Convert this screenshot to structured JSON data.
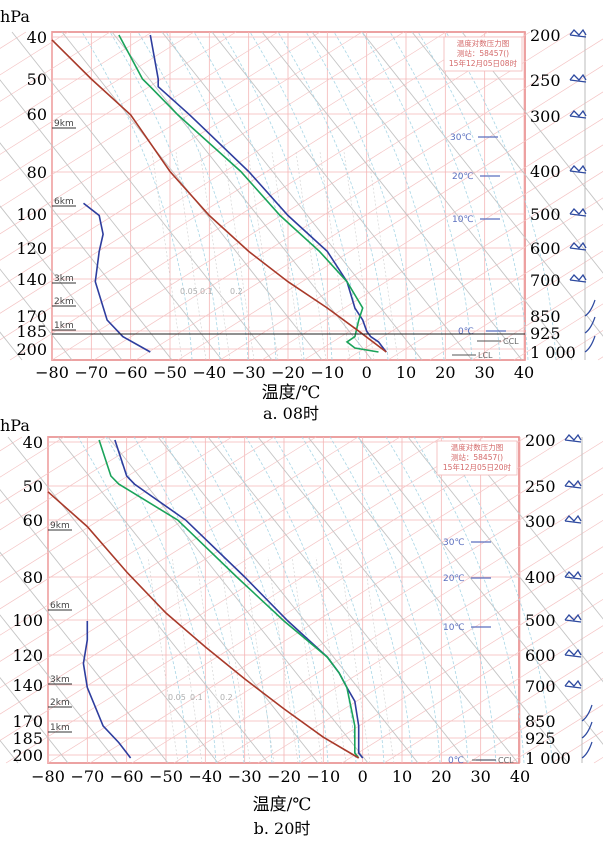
{
  "chart_data": [
    {
      "type": "line",
      "panel_caption": "a. 08时",
      "ylabel_unit": "hPa",
      "xlabel": "温度/℃",
      "x_ticks": [
        -80,
        -70,
        -60,
        -50,
        -40,
        -30,
        -20,
        -10,
        0,
        10,
        20,
        30,
        40
      ],
      "x_tick_labels": [
        "−80",
        "−70",
        "−60",
        "−50",
        "−40",
        "−30",
        "−20",
        "−10",
        "0",
        "10",
        "20",
        "30",
        "40"
      ],
      "xlim": [
        -80,
        40
      ],
      "y_scale": "log-pressure",
      "y_ticks_left": [
        "40",
        "50",
        "60",
        "80",
        "100",
        "120",
        "140",
        "170",
        "185",
        "200"
      ],
      "y_ticks_right": [
        "200",
        "250",
        "300",
        "400",
        "500",
        "600",
        "700",
        "850",
        "925",
        "1 000"
      ],
      "height_marks": [
        "9km",
        "6km",
        "3km",
        "2km",
        "1km"
      ],
      "isotherm_labels": [
        "30℃",
        "20℃",
        "10℃",
        "0℃"
      ],
      "mixing_ratio_labels": [
        "0.05",
        "0.1",
        "0.2"
      ],
      "level_labels": [
        "CCL",
        "LCL"
      ],
      "info_box": [
        "温度对数压力图",
        "测站：58457()",
        "15年12月05日08时"
      ],
      "series": [
        {
          "color": "#2e3d9e",
          "x": [
            5,
            3,
            1,
            0,
            -1,
            -3,
            -5,
            -10,
            -20,
            -30,
            -45,
            -53,
            -53,
            -55
          ],
          "y_hpa": [
            1000,
            950,
            925,
            900,
            850,
            800,
            700,
            600,
            500,
            400,
            300,
            260,
            250,
            200
          ]
        },
        {
          "color": "#1aa35a",
          "x": [
            3,
            -3,
            -5,
            -3,
            -2,
            -1,
            -5,
            -12,
            -22,
            -32,
            -48,
            -55,
            -57,
            -63
          ],
          "y_hpa": [
            1000,
            980,
            950,
            925,
            850,
            800,
            700,
            600,
            500,
            400,
            300,
            260,
            250,
            200
          ]
        },
        {
          "color": "#a83a2a",
          "x": [
            5,
            -2,
            -10,
            -20,
            -30,
            -40,
            -50,
            -60,
            -70,
            -80
          ],
          "y_hpa": [
            1000,
            900,
            800,
            700,
            600,
            500,
            400,
            300,
            250,
            205
          ]
        },
        {
          "color": "#2e3d9e",
          "x": [
            -55,
            -62,
            -66,
            -69,
            -68,
            -67,
            -68,
            -72
          ],
          "y_hpa": [
            1000,
            925,
            850,
            700,
            600,
            550,
            500,
            470
          ]
        }
      ]
    },
    {
      "type": "line",
      "panel_caption": "b. 20时",
      "ylabel_unit": "hPa",
      "xlabel": "温度/℃",
      "x_ticks": [
        -80,
        -70,
        -60,
        -50,
        -40,
        -30,
        -20,
        -10,
        0,
        10,
        20,
        30,
        40
      ],
      "x_tick_labels": [
        "−80",
        "−70",
        "−60",
        "−50",
        "−40",
        "−30",
        "−20",
        "−10",
        "0",
        "10",
        "20",
        "30",
        "40"
      ],
      "xlim": [
        -80,
        40
      ],
      "y_scale": "log-pressure",
      "y_ticks_left": [
        "40",
        "50",
        "60",
        "80",
        "100",
        "120",
        "140",
        "170",
        "185",
        "200"
      ],
      "y_ticks_right": [
        "200",
        "250",
        "300",
        "400",
        "500",
        "600",
        "700",
        "850",
        "925",
        "1 000"
      ],
      "height_marks": [
        "9km",
        "6km",
        "3km",
        "2km",
        "1km"
      ],
      "isotherm_labels": [
        "30℃",
        "20℃",
        "10℃",
        "0℃"
      ],
      "mixing_ratio_labels": [
        "0.05",
        "0.1",
        "0.2"
      ],
      "level_labels": [
        "CCL"
      ],
      "info_box": [
        "温度对数压力图",
        "测站：58457()",
        "15年12月05日20时"
      ],
      "series": [
        {
          "color": "#2e3d9e",
          "x": [
            0,
            -1,
            -1,
            -1,
            -2,
            -4,
            -6,
            -9,
            -19,
            -30,
            -45,
            -58,
            -60,
            -63
          ],
          "y_hpa": [
            1000,
            975,
            925,
            850,
            750,
            700,
            650,
            600,
            500,
            400,
            300,
            250,
            240,
            200
          ]
        },
        {
          "color": "#1aa35a",
          "x": [
            -1,
            -2,
            -2,
            -2,
            -4,
            -6,
            -9,
            -20,
            -32,
            -47,
            -62,
            -64,
            -67
          ],
          "y_hpa": [
            1000,
            975,
            925,
            850,
            700,
            650,
            600,
            500,
            400,
            300,
            250,
            240,
            200
          ]
        },
        {
          "color": "#a83a2a",
          "x": [
            -1,
            -10,
            -20,
            -30,
            -40,
            -50,
            -60,
            -70,
            -80
          ],
          "y_hpa": [
            1000,
            900,
            780,
            670,
            570,
            480,
            390,
            310,
            260
          ]
        },
        {
          "color": "#2e3d9e",
          "x": [
            -59,
            -62,
            -66,
            -70,
            -71,
            -70,
            -70
          ],
          "y_hpa": [
            1000,
            925,
            850,
            700,
            620,
            550,
            500
          ]
        }
      ]
    }
  ]
}
